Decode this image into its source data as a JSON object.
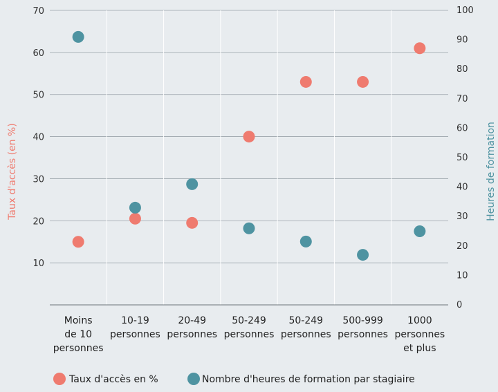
{
  "chart_data": {
    "type": "scatter",
    "categories": [
      [
        "Moins",
        "de 10",
        "personnes"
      ],
      [
        "10-19",
        "personnes"
      ],
      [
        "20-49",
        "personnes"
      ],
      [
        "50-249",
        "personnes"
      ],
      [
        "50-249",
        "personnes"
      ],
      [
        "500-999",
        "personnes"
      ],
      [
        "1000",
        "personnes",
        "et plus"
      ]
    ],
    "series": [
      {
        "name": "Taux d'accès en %",
        "axis": "left",
        "color": "#ef7b6f",
        "values": [
          15,
          20.5,
          19.5,
          40,
          53,
          53,
          61
        ]
      },
      {
        "name": "Nombre d'heures de formation par stagiaire",
        "axis": "right",
        "color": "#4e93a1",
        "values": [
          91,
          33,
          41,
          26,
          21.5,
          17,
          25
        ]
      }
    ],
    "y_left": {
      "label": "Taux d'accès (en %)",
      "ticks": [
        10,
        20,
        30,
        40,
        50,
        60,
        70
      ],
      "range": [
        0,
        70
      ],
      "color": "#ef7b6f"
    },
    "y_right": {
      "label": "Heures de formation",
      "ticks": [
        0,
        10,
        20,
        30,
        40,
        50,
        60,
        70,
        80,
        90,
        100
      ],
      "range": [
        0,
        100
      ],
      "color": "#4e93a1"
    },
    "grid": true,
    "legend": "bottom"
  }
}
